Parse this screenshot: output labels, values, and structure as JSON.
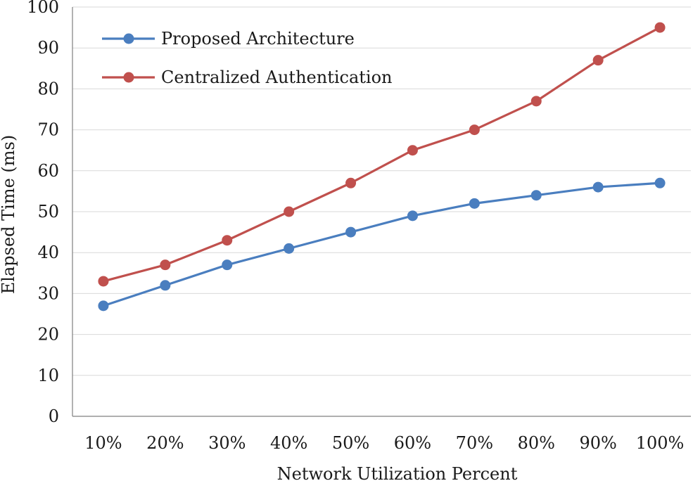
{
  "chart_data": {
    "type": "line",
    "title": "",
    "xlabel": "Network Utilization Percent",
    "ylabel": "Elapsed Time (ms)",
    "categories": [
      "10%",
      "20%",
      "30%",
      "40%",
      "50%",
      "60%",
      "70%",
      "80%",
      "90%",
      "100%"
    ],
    "ylim": [
      0,
      100
    ],
    "yticks": [
      0,
      10,
      20,
      30,
      40,
      50,
      60,
      70,
      80,
      90,
      100
    ],
    "ytick_labels": [
      "0",
      "10",
      "20",
      "30",
      "40",
      "50",
      "60",
      "70",
      "80",
      "90",
      "100"
    ],
    "grid": true,
    "legend_position": "top-left",
    "series": [
      {
        "name": "Proposed Architecture",
        "color": "#4a7ebf",
        "values": [
          27,
          32,
          37,
          41,
          45,
          49,
          52,
          54,
          56,
          57
        ]
      },
      {
        "name": "Centralized Authentication",
        "color": "#c0504d",
        "values": [
          33,
          37,
          43,
          50,
          57,
          65,
          70,
          77,
          87,
          95
        ]
      }
    ]
  }
}
